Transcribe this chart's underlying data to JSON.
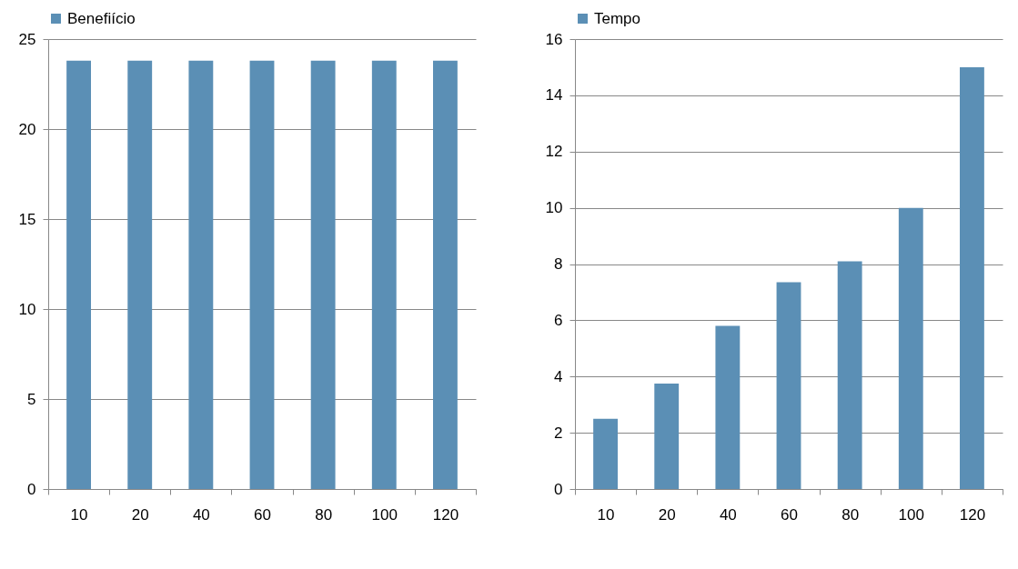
{
  "chart_data": [
    {
      "type": "bar",
      "categories": [
        "10",
        "20",
        "40",
        "60",
        "80",
        "100",
        "120"
      ],
      "series": [
        {
          "name": "Benefiício",
          "color": "#5b8fb5",
          "values": [
            23.8,
            23.8,
            23.8,
            23.8,
            23.8,
            23.8,
            23.8
          ]
        }
      ],
      "ylim": [
        0,
        25
      ],
      "yticks": [
        0,
        5,
        10,
        15,
        20,
        25
      ],
      "grid": "y",
      "legend": "top"
    },
    {
      "type": "bar",
      "categories": [
        "10",
        "20",
        "40",
        "60",
        "80",
        "100",
        "120"
      ],
      "series": [
        {
          "name": "Tempo",
          "color": "#5b8fb5",
          "values": [
            2.5,
            3.75,
            5.8,
            7.35,
            8.1,
            10,
            15
          ]
        }
      ],
      "ylim": [
        0,
        16
      ],
      "yticks": [
        0,
        2,
        4,
        6,
        8,
        10,
        12,
        14,
        16
      ],
      "grid": "y",
      "legend": "top"
    }
  ]
}
